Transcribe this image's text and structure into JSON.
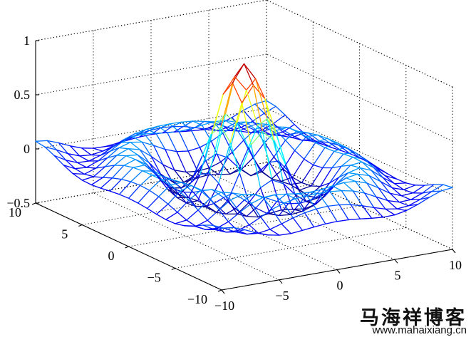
{
  "chart_data": {
    "type": "surface-mesh",
    "function": "sinc: z = sin(r)/r, r = sqrt(x^2 + y^2)",
    "x": [
      -10,
      10
    ],
    "y": [
      -10,
      10
    ],
    "grid_lines": 21,
    "zlim": [
      -0.5,
      1
    ],
    "xticks": [
      "−10",
      "−5",
      "0",
      "5",
      "10"
    ],
    "yticks": [
      "−10",
      "−5",
      "0",
      "5",
      "10"
    ],
    "zticks": [
      "−0.5",
      "0",
      "0.5",
      "1"
    ],
    "colormap": "jet",
    "grid": true,
    "box": "dotted"
  },
  "watermark": {
    "name": "马海祥博客",
    "url": "www.mahaixiang.cn"
  }
}
